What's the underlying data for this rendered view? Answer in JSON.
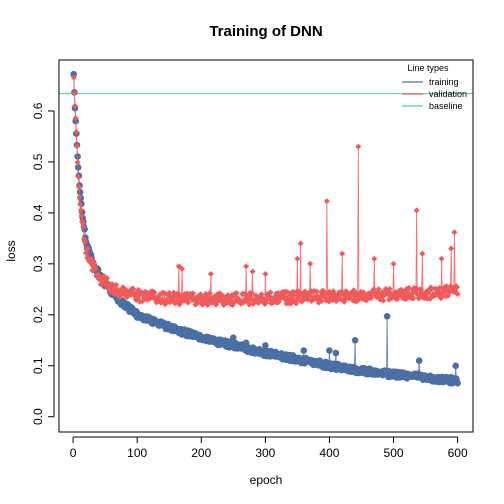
{
  "chart_data": {
    "type": "scatter",
    "title": "Training of DNN",
    "xlabel": "epoch",
    "ylabel": "loss",
    "xlim": [
      -22,
      624
    ],
    "ylim": [
      -0.03,
      0.7
    ],
    "x_ticks": [
      0,
      100,
      200,
      300,
      400,
      500,
      600
    ],
    "y_ticks": [
      0.0,
      0.1,
      0.2,
      0.3,
      0.4,
      0.5,
      0.6
    ],
    "y_tick_labels": [
      "0.0",
      "0.1",
      "0.2",
      "0.3",
      "0.4",
      "0.5",
      "0.6"
    ],
    "grid": false,
    "legend": {
      "title": "Line types",
      "position": "top-right",
      "entries": [
        {
          "label": "training",
          "color": "#4a6fa5"
        },
        {
          "label": "validation",
          "color": "#f15a5a"
        },
        {
          "label": "baseline",
          "color": "#40d4a0"
        }
      ]
    },
    "baseline": {
      "name": "baseline",
      "y": 0.634,
      "color": "#40d4a0"
    },
    "series": [
      {
        "name": "training",
        "color": "#4a6fa5",
        "marker": "circle",
        "epochs": 600,
        "anchors": [
          [
            1,
            0.672
          ],
          [
            2,
            0.635
          ],
          [
            3,
            0.605
          ],
          [
            5,
            0.555
          ],
          [
            8,
            0.49
          ],
          [
            10,
            0.455
          ],
          [
            15,
            0.39
          ],
          [
            20,
            0.345
          ],
          [
            30,
            0.305
          ],
          [
            40,
            0.28
          ],
          [
            50,
            0.26
          ],
          [
            75,
            0.225
          ],
          [
            100,
            0.2
          ],
          [
            150,
            0.175
          ],
          [
            200,
            0.155
          ],
          [
            250,
            0.14
          ],
          [
            300,
            0.125
          ],
          [
            350,
            0.113
          ],
          [
            400,
            0.1
          ],
          [
            450,
            0.09
          ],
          [
            500,
            0.083
          ],
          [
            550,
            0.077
          ],
          [
            600,
            0.07
          ]
        ],
        "outliers": [
          [
            250,
            0.155
          ],
          [
            270,
            0.145
          ],
          [
            300,
            0.14
          ],
          [
            320,
            0.12
          ],
          [
            340,
            0.12
          ],
          [
            360,
            0.13
          ],
          [
            400,
            0.13
          ],
          [
            410,
            0.125
          ],
          [
            440,
            0.15
          ],
          [
            490,
            0.197
          ],
          [
            540,
            0.11
          ],
          [
            597,
            0.1
          ]
        ]
      },
      {
        "name": "validation",
        "color": "#f15a5a",
        "marker": "diamond",
        "epochs": 600,
        "anchors": [
          [
            1,
            0.665
          ],
          [
            2,
            0.635
          ],
          [
            3,
            0.61
          ],
          [
            5,
            0.56
          ],
          [
            8,
            0.47
          ],
          [
            10,
            0.43
          ],
          [
            15,
            0.37
          ],
          [
            20,
            0.33
          ],
          [
            30,
            0.295
          ],
          [
            40,
            0.275
          ],
          [
            50,
            0.262
          ],
          [
            75,
            0.245
          ],
          [
            100,
            0.238
          ],
          [
            150,
            0.232
          ],
          [
            200,
            0.23
          ],
          [
            300,
            0.232
          ],
          [
            400,
            0.236
          ],
          [
            500,
            0.24
          ],
          [
            600,
            0.245
          ]
        ],
        "outliers": [
          [
            165,
            0.295
          ],
          [
            170,
            0.29
          ],
          [
            215,
            0.28
          ],
          [
            270,
            0.295
          ],
          [
            280,
            0.285
          ],
          [
            300,
            0.28
          ],
          [
            350,
            0.31
          ],
          [
            355,
            0.34
          ],
          [
            370,
            0.3
          ],
          [
            396,
            0.423
          ],
          [
            420,
            0.32
          ],
          [
            445,
            0.53
          ],
          [
            470,
            0.31
          ],
          [
            500,
            0.3
          ],
          [
            536,
            0.405
          ],
          [
            545,
            0.32
          ],
          [
            575,
            0.31
          ],
          [
            590,
            0.33
          ],
          [
            595,
            0.362
          ]
        ]
      }
    ]
  }
}
